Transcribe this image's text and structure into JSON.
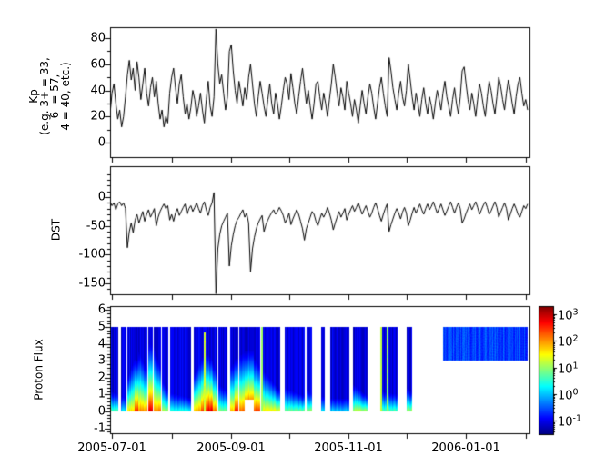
{
  "figure": {
    "background": "#ffffff",
    "axis_color": "#000000",
    "line_color": "#000000"
  },
  "axis_labels": {
    "kp": "Kp\n(e.g. 3+ = 33,\n6- = 57,\n4 = 40, etc.)",
    "dst": "DST",
    "proton": "Proton Flux"
  },
  "x_axis": {
    "tick_labels": [
      "2005-07-01",
      "2005-09-01",
      "2005-11-01",
      "2006-01-01"
    ]
  },
  "kp_axis": {
    "ticks": [
      "80",
      "60",
      "40",
      "20",
      "0"
    ]
  },
  "dst_axis": {
    "ticks": [
      "0",
      "-50",
      "-100",
      "-150"
    ]
  },
  "proton_axis": {
    "ticks": [
      "6",
      "5",
      "4",
      "3",
      "2",
      "1",
      "0",
      "-1"
    ]
  },
  "colorbar": {
    "base": "10",
    "ticks": [
      {
        "exp": "3"
      },
      {
        "exp": "2"
      },
      {
        "exp": "1"
      },
      {
        "exp": "0"
      },
      {
        "exp": "-1"
      }
    ],
    "colormap": "jet",
    "vmin_log10": -1.5,
    "vmax_log10": 3.3
  },
  "chart_data": [
    {
      "type": "line",
      "name": "Kp",
      "ylabel": "Kp (e.g. 3+ = 33, 6- = 57, 4 = 40, etc.)",
      "ylim": [
        -11,
        88.3
      ],
      "yticks": [
        0,
        20,
        40,
        60,
        80
      ],
      "yticks_minor_step": 10,
      "x_start_date": "2005-06-30",
      "x_end_date": "2006-02-02",
      "x_unit": "days since 2005-06-30",
      "x_month_tick_days": [
        1,
        32,
        63,
        93,
        124,
        154,
        185,
        216
      ],
      "x_labeled_tick_indices": [
        0,
        2,
        4,
        6
      ],
      "values_per_day": 1,
      "values": [
        22,
        38,
        45,
        30,
        18,
        25,
        12,
        20,
        35,
        52,
        63,
        48,
        57,
        40,
        62,
        50,
        33,
        45,
        57,
        38,
        28,
        42,
        50,
        35,
        47,
        30,
        18,
        25,
        12,
        20,
        15,
        38,
        50,
        57,
        42,
        30,
        45,
        52,
        35,
        22,
        30,
        18,
        27,
        40,
        33,
        20,
        28,
        38,
        25,
        15,
        33,
        47,
        28,
        20,
        35,
        87,
        60,
        45,
        52,
        38,
        25,
        35,
        70,
        75,
        55,
        40,
        30,
        47,
        38,
        28,
        42,
        33,
        50,
        60,
        45,
        30,
        20,
        35,
        47,
        38,
        28,
        20,
        33,
        45,
        30,
        22,
        38,
        30,
        18,
        28,
        40,
        50,
        45,
        33,
        53,
        42,
        30,
        22,
        35,
        47,
        57,
        43,
        30,
        40,
        28,
        18,
        30,
        45,
        47,
        35,
        25,
        38,
        30,
        20,
        33,
        45,
        60,
        50,
        38,
        28,
        42,
        35,
        25,
        47,
        38,
        30,
        20,
        33,
        25,
        15,
        28,
        40,
        30,
        22,
        35,
        45,
        38,
        27,
        18,
        30,
        42,
        50,
        38,
        28,
        20,
        65,
        55,
        42,
        33,
        25,
        38,
        47,
        35,
        28,
        40,
        60,
        48,
        35,
        25,
        38,
        30,
        20,
        33,
        42,
        30,
        22,
        35,
        28,
        18,
        30,
        40,
        33,
        25,
        38,
        47,
        35,
        28,
        20,
        33,
        42,
        30,
        22,
        35,
        55,
        58,
        45,
        33,
        25,
        38,
        30,
        20,
        33,
        45,
        38,
        28,
        20,
        35,
        47,
        40,
        30,
        22,
        35,
        50,
        43,
        33,
        25,
        38,
        48,
        40,
        30,
        22,
        35,
        45,
        50,
        38,
        28,
        33,
        25
      ]
    },
    {
      "type": "line",
      "name": "DST",
      "ylabel": "DST",
      "ylim": [
        -169,
        53.7
      ],
      "yticks": [
        0,
        -50,
        -100,
        -150
      ],
      "yticks_minor_step": 10,
      "x_month_tick_days": [
        1,
        32,
        63,
        93,
        124,
        154,
        185,
        216
      ],
      "values_per_day": 1,
      "values": [
        -8,
        -15,
        -10,
        -22,
        -12,
        -8,
        -15,
        -10,
        -20,
        -88,
        -60,
        -45,
        -62,
        -40,
        -30,
        -45,
        -35,
        -25,
        -42,
        -30,
        -22,
        -35,
        -28,
        -20,
        -50,
        -35,
        -25,
        -18,
        -12,
        -20,
        -15,
        -40,
        -30,
        -42,
        -28,
        -20,
        -32,
        -25,
        -18,
        -12,
        -30,
        -20,
        -15,
        -25,
        -18,
        -10,
        -20,
        -28,
        -15,
        -8,
        -22,
        -32,
        -18,
        -10,
        8,
        -168,
        -90,
        -65,
        -50,
        -42,
        -35,
        -28,
        -120,
        -85,
        -65,
        -50,
        -40,
        -35,
        -28,
        -22,
        -35,
        -28,
        -45,
        -130,
        -90,
        -70,
        -55,
        -45,
        -38,
        -32,
        -60,
        -48,
        -40,
        -33,
        -27,
        -22,
        -30,
        -25,
        -18,
        -24,
        -32,
        -45,
        -38,
        -28,
        -48,
        -38,
        -30,
        -22,
        -30,
        -42,
        -55,
        -75,
        -55,
        -45,
        -35,
        -25,
        -30,
        -42,
        -50,
        -38,
        -28,
        -35,
        -28,
        -18,
        -28,
        -40,
        -57,
        -45,
        -35,
        -25,
        -35,
        -28,
        -20,
        -40,
        -30,
        -22,
        -15,
        -25,
        -18,
        -10,
        -20,
        -30,
        -22,
        -15,
        -25,
        -35,
        -28,
        -18,
        -10,
        -20,
        -32,
        -42,
        -30,
        -20,
        -12,
        -60,
        -48,
        -38,
        -28,
        -20,
        -28,
        -38,
        -26,
        -18,
        -28,
        -50,
        -40,
        -28,
        -18,
        -28,
        -20,
        -12,
        -22,
        -30,
        -20,
        -12,
        -22,
        -16,
        -8,
        -18,
        -28,
        -20,
        -12,
        -22,
        -32,
        -24,
        -16,
        -8,
        -18,
        -28,
        -18,
        -10,
        -20,
        -45,
        -38,
        -28,
        -20,
        -12,
        -22,
        -15,
        -8,
        -18,
        -30,
        -22,
        -14,
        -8,
        -18,
        -30,
        -24,
        -16,
        -8,
        -18,
        -35,
        -26,
        -18,
        -10,
        -20,
        -40,
        -30,
        -20,
        -12,
        -20,
        -30,
        -35,
        -25,
        -15,
        -20,
        -12
      ]
    },
    {
      "type": "heatmap",
      "name": "Proton Flux",
      "ylabel": "Proton Flux",
      "ylim": [
        -1.29,
        6.24
      ],
      "yticks": [
        -1,
        0,
        1,
        2,
        3,
        4,
        5,
        6
      ],
      "yticks_minor_step": 0.2,
      "data_L_range": [
        0,
        5
      ],
      "value_scale": "log10 flux",
      "vmin": -1.5,
      "vmax": 3.3,
      "colormap": "jet",
      "background_log10": -1.05,
      "bands": [
        {
          "d0": 0.5,
          "d1": 4.3,
          "w0": 1.2,
          "w1": 1.0,
          "peak": 0.8
        },
        {
          "d0": 5.7,
          "d1": 8.5,
          "w0": 0.9,
          "w1": 0.8,
          "peak": 0.3
        },
        {
          "d0": 9.0,
          "d1": 12.8,
          "w0": 2.0,
          "w1": 3.2,
          "peak": 1.7
        },
        {
          "d0": 12.8,
          "d1": 14.7,
          "w0": 3.1,
          "w1": 3.0,
          "peak": 2.7
        },
        {
          "d0": 14.7,
          "d1": 19.4,
          "w0": 3.5,
          "w1": 2.4,
          "peak": 2.1
        },
        {
          "d0": 19.9,
          "d1": 22.2,
          "w0": 4.0,
          "w1": 3.9,
          "peak": 2.9
        },
        {
          "d0": 22.7,
          "d1": 26.5,
          "w0": 3.8,
          "w1": 2.4,
          "peak": 2.2
        },
        {
          "d0": 27.0,
          "d1": 30.3,
          "w0": 1.8,
          "w1": 1.2,
          "peak": 1.2
        },
        {
          "d0": 31.2,
          "d1": 42.1,
          "w0": 1.1,
          "w1": 0.8,
          "peak": 0.5
        },
        {
          "d0": 43.5,
          "d1": 47.5,
          "w0": 2.2,
          "w1": 3.1,
          "peak": 1.9
        },
        {
          "d0": 47.5,
          "d1": 50.5,
          "w0": 3.2,
          "w1": 3.4,
          "peak": 2.5,
          "streak": {
            "d": 48.7,
            "ltop": 4.7,
            "v": 1.3
          }
        },
        {
          "d0": 50.5,
          "d1": 53.2,
          "w0": 3.4,
          "w1": 3.0,
          "peak": 2.95
        },
        {
          "d0": 53.2,
          "d1": 55.8,
          "w0": 2.8,
          "w1": 2.2,
          "peak": 2.2
        },
        {
          "d0": 56.3,
          "d1": 61.0,
          "w0": 1.6,
          "w1": 1.2,
          "peak": 1.0
        },
        {
          "d0": 62.4,
          "d1": 64.9,
          "w0": 2.6,
          "w1": 3.0,
          "peak": 1.9
        },
        {
          "d0": 64.9,
          "d1": 66.7,
          "w0": 3.1,
          "w1": 3.2,
          "peak": 2.8
        },
        {
          "d0": 67.0,
          "d1": 70.0,
          "w0": 3.3,
          "w1": 3.5,
          "peak": 2.3
        },
        {
          "d0": 70.0,
          "d1": 74.5,
          "w0": 3.6,
          "w1": 3.6,
          "peak": 3.0,
          "lmin": 0.7
        },
        {
          "d0": 74.5,
          "d1": 78.0,
          "w0": 3.2,
          "w1": 2.6,
          "peak": 2.5
        },
        {
          "d0": 78.5,
          "d1": 79.6,
          "w0": 5.0,
          "w1": 5.0,
          "peak": 1.4,
          "uniform": 1.1
        },
        {
          "d0": 79.6,
          "d1": 88.4,
          "w0": 2.4,
          "w1": 1.2,
          "peak": 1.6
        },
        {
          "d0": 90.8,
          "d1": 101.2,
          "w0": 1.4,
          "w1": 0.9,
          "peak": 0.9
        },
        {
          "d0": 102.0,
          "d1": 105.0,
          "w0": 1.3,
          "w1": 1.0,
          "peak": 1.1
        },
        {
          "d0": 109.7,
          "d1": 111.6,
          "w0": 0.9,
          "w1": 0.9,
          "peak": 0.3
        },
        {
          "d0": 114.4,
          "d1": 124.3,
          "w0": 0.8,
          "w1": 0.8,
          "peak": 0.2
        },
        {
          "d0": 126.2,
          "d1": 133.8,
          "w0": 1.6,
          "w1": 0.9,
          "peak": 1.3
        },
        {
          "d0": 140.4,
          "d1": 141.3,
          "w0": 5.0,
          "w1": 5.0,
          "peak": 1.2,
          "uniform": 1.0
        },
        {
          "d0": 141.3,
          "d1": 149.4,
          "w0": 1.2,
          "w1": 1.0,
          "peak": 0.8,
          "streak": {
            "d": 143.7,
            "ltop": 5.0,
            "v": 1.0
          }
        },
        {
          "d0": 154.1,
          "d1": 157.0,
          "w0": 1.4,
          "w1": 1.1,
          "peak": 1.2
        },
        {
          "d0": 173.0,
          "d1": 217.0,
          "lmin": 3.0,
          "lmax": 5.0,
          "w0": 5.0,
          "w1": 5.0,
          "peak": 0.0,
          "uniform": -0.6
        }
      ]
    }
  ]
}
